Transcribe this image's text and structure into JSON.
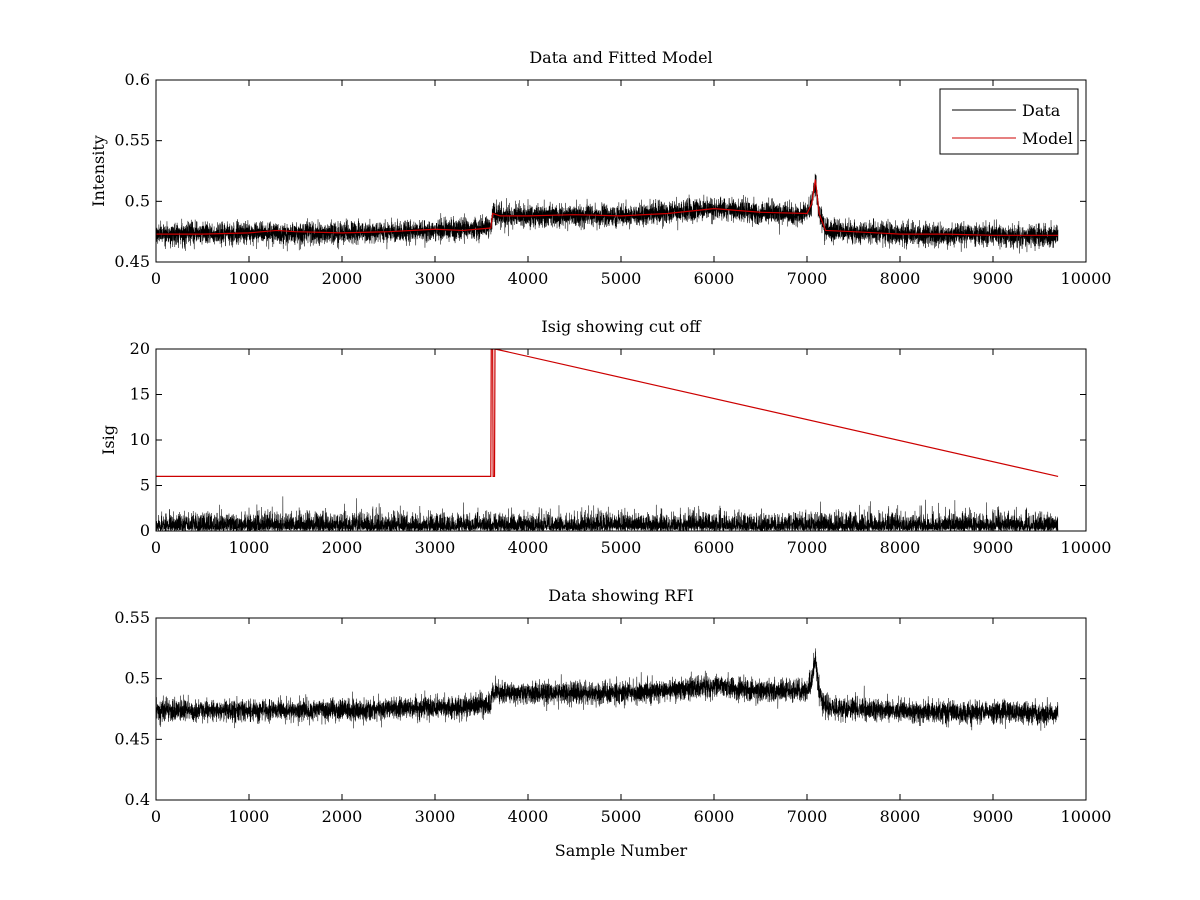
{
  "figure": {
    "background": "#ffffff",
    "axes_color": "#000000",
    "data_color": "#000000",
    "model_color": "#cc0000"
  },
  "chart_data": [
    {
      "id": "top",
      "type": "line",
      "title": "Data and Fitted Model",
      "xlabel": "",
      "ylabel": "Intensity",
      "xlim": [
        0,
        10000
      ],
      "ylim": [
        0.45,
        0.6
      ],
      "xticks": [
        0,
        1000,
        2000,
        3000,
        4000,
        5000,
        6000,
        7000,
        8000,
        9000,
        10000
      ],
      "yticks": [
        0.45,
        0.5,
        0.55,
        0.6
      ],
      "ytick_labels": [
        "0.45",
        "0.5",
        "0.55",
        "0.6"
      ],
      "legend": {
        "position": "top-right",
        "entries": [
          "Data",
          "Model"
        ]
      },
      "series": [
        {
          "name": "Data",
          "kind": "noisy",
          "color": "#000000",
          "n_samples": 9700,
          "baseline": {
            "x": [
              0,
              1000,
              2000,
              3000,
              3600,
              3620,
              3700,
              4000,
              5000,
              6000,
              6500,
              7000,
              7050,
              7090,
              7130,
              7200,
              8000,
              9000,
              9700
            ],
            "y": [
              0.473,
              0.474,
              0.474,
              0.476,
              0.478,
              0.49,
              0.488,
              0.488,
              0.488,
              0.494,
              0.49,
              0.49,
              0.498,
              0.517,
              0.49,
              0.476,
              0.473,
              0.472,
              0.471
            ]
          },
          "noise_amplitude": 0.0045
        },
        {
          "name": "Model",
          "kind": "line",
          "color": "#cc0000",
          "x": [
            0,
            500,
            1000,
            1300,
            1500,
            2000,
            2500,
            3000,
            3300,
            3600,
            3620,
            3700,
            4000,
            4500,
            5000,
            5500,
            6000,
            6500,
            7000,
            7050,
            7090,
            7130,
            7200,
            7500,
            8000,
            8500,
            9000,
            9700
          ],
          "y": [
            0.473,
            0.473,
            0.474,
            0.476,
            0.475,
            0.474,
            0.475,
            0.477,
            0.476,
            0.478,
            0.49,
            0.488,
            0.488,
            0.489,
            0.488,
            0.49,
            0.494,
            0.491,
            0.49,
            0.498,
            0.518,
            0.49,
            0.476,
            0.475,
            0.473,
            0.473,
            0.472,
            0.472
          ]
        }
      ]
    },
    {
      "id": "middle",
      "type": "line",
      "title": "Isig showing cut off",
      "xlabel": "",
      "ylabel": "Isig",
      "xlim": [
        0,
        10000
      ],
      "ylim": [
        0,
        20
      ],
      "xticks": [
        0,
        1000,
        2000,
        3000,
        4000,
        5000,
        6000,
        7000,
        8000,
        9000,
        10000
      ],
      "yticks": [
        0,
        5,
        10,
        15,
        20
      ],
      "ytick_labels": [
        "0",
        "5",
        "10",
        "15",
        "20"
      ],
      "series": [
        {
          "name": "Isig",
          "kind": "abs-noise",
          "color": "#000000",
          "n_samples": 9700,
          "scale": 0.9,
          "max_value": 3.8
        },
        {
          "name": "Cut off",
          "kind": "line",
          "color": "#cc0000",
          "x": [
            0,
            3600,
            3605,
            3620,
            3625,
            3640,
            3645,
            9700
          ],
          "y": [
            6,
            6,
            20,
            20,
            6,
            6,
            20,
            6
          ]
        }
      ]
    },
    {
      "id": "bottom",
      "type": "line",
      "title": "Data showing RFI",
      "xlabel": "Sample Number",
      "ylabel": "",
      "xlim": [
        0,
        10000
      ],
      "ylim": [
        0.4,
        0.55
      ],
      "xticks": [
        0,
        1000,
        2000,
        3000,
        4000,
        5000,
        6000,
        7000,
        8000,
        9000,
        10000
      ],
      "yticks": [
        0.4,
        0.45,
        0.5,
        0.55
      ],
      "ytick_labels": [
        "0.4",
        "0.45",
        "0.5",
        "0.55"
      ],
      "series": [
        {
          "name": "Data",
          "kind": "noisy",
          "color": "#000000",
          "n_samples": 9700,
          "baseline": {
            "x": [
              0,
              1000,
              2000,
              3000,
              3600,
              3620,
              3700,
              4000,
              5000,
              6000,
              6500,
              7000,
              7050,
              7090,
              7130,
              7200,
              8000,
              9000,
              9700
            ],
            "y": [
              0.473,
              0.474,
              0.474,
              0.476,
              0.478,
              0.49,
              0.488,
              0.488,
              0.488,
              0.494,
              0.49,
              0.49,
              0.498,
              0.517,
              0.49,
              0.476,
              0.473,
              0.472,
              0.471
            ]
          },
          "noise_amplitude": 0.0045
        }
      ]
    }
  ]
}
